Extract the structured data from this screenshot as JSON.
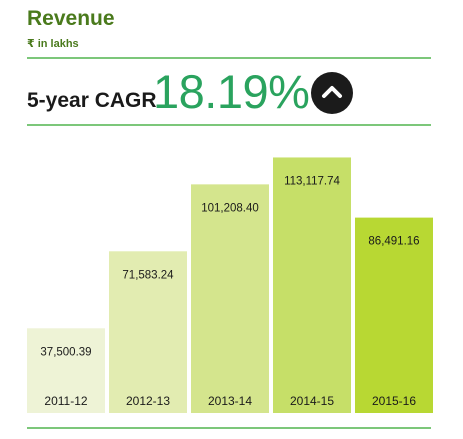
{
  "header": {
    "title": "Revenue",
    "unit": "₹ in lakhs"
  },
  "cagr": {
    "label": "5-year CAGR",
    "value": "18.19%",
    "trend_icon": "chevron-up-icon"
  },
  "colors": {
    "title": "#4a7a1c",
    "rule": "#7cc77a",
    "cagr_value": "#2aa35e",
    "bars": [
      "#eef3d6",
      "#e2ecb1",
      "#d4e58d",
      "#c6df68",
      "#b8d833"
    ]
  },
  "chart_data": {
    "type": "bar",
    "title": "Revenue",
    "ylabel": "₹ in lakhs",
    "xlabel": "",
    "categories": [
      "2011-12",
      "2012-13",
      "2013-14",
      "2014-15",
      "2015-16"
    ],
    "values": [
      37500.39,
      71583.24,
      101208.4,
      113117.74,
      86491.16
    ],
    "value_labels": [
      "37,500.39",
      "71,583.24",
      "101,208.40",
      "113,117.74",
      "86,491.16"
    ],
    "ylim": [
      0,
      120000
    ],
    "grid": false,
    "legend": "none"
  }
}
